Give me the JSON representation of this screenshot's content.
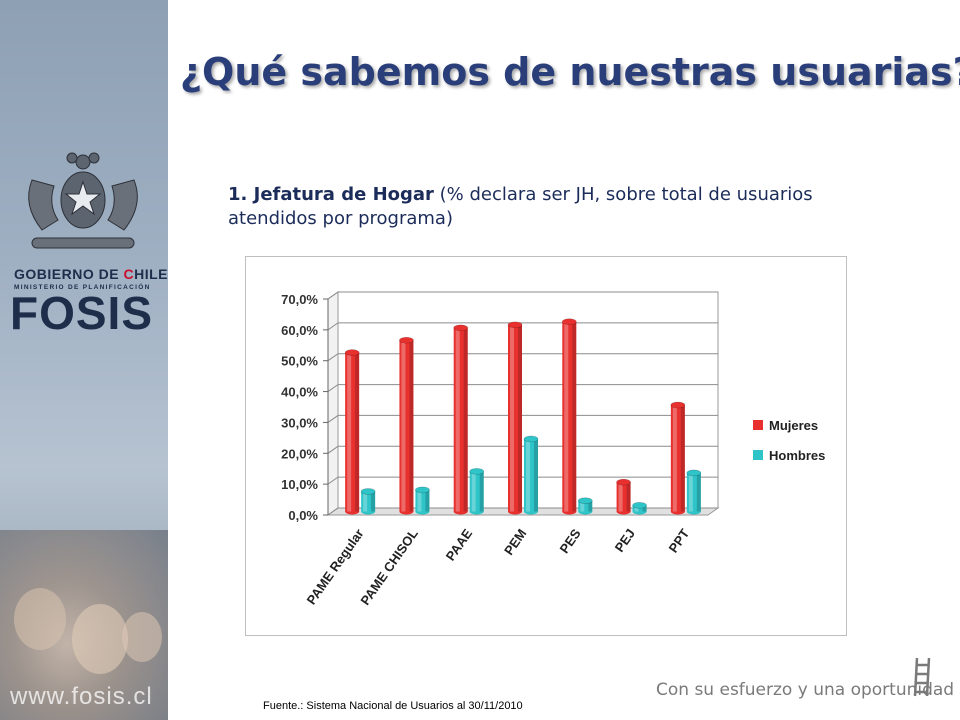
{
  "slide": {
    "title": "¿Qué sabemos de nuestras usuarias?",
    "subtitle_bold": "1. Jefatura de Hogar",
    "subtitle_rest": " (% declara ser JH, sobre total de usuarios atendidos por programa)",
    "source": "Fuente.: Sistema Nacional de Usuarios al 30/11/2010",
    "slogan": "Con su esfuerzo y una oportunidad"
  },
  "brand": {
    "gobierno_a": "GOBIERNO DE ",
    "gobierno_b": "C",
    "gobierno_c": "HILE",
    "ministerio": "MINISTERIO DE PLANIFICACIÓN",
    "logo": "FOSIS",
    "web": "www.fosis.cl"
  },
  "colors": {
    "mujeres": "#e8312f",
    "hombres": "#2ec4c8",
    "title": "#2a3f7a"
  },
  "chart_data": {
    "type": "bar",
    "title": "",
    "xlabel": "",
    "ylabel": "",
    "categories": [
      "PAME Regular",
      "PAME CHISOL",
      "PAAE",
      "PEM",
      "PES",
      "PEJ",
      "PPT"
    ],
    "series": [
      {
        "name": "Mujeres",
        "values": [
          51.5,
          55.5,
          59.5,
          60.5,
          61.5,
          9.5,
          34.5
        ]
      },
      {
        "name": "Hombres",
        "values": [
          6.5,
          7.0,
          13.0,
          23.5,
          3.5,
          2.0,
          12.5
        ]
      }
    ],
    "ylim": [
      0,
      70
    ],
    "yticks": [
      "0,0%",
      "10,0%",
      "20,0%",
      "30,0%",
      "40,0%",
      "50,0%",
      "60,0%",
      "70,0%"
    ],
    "grid": true,
    "legend": "right",
    "style": "3d"
  }
}
